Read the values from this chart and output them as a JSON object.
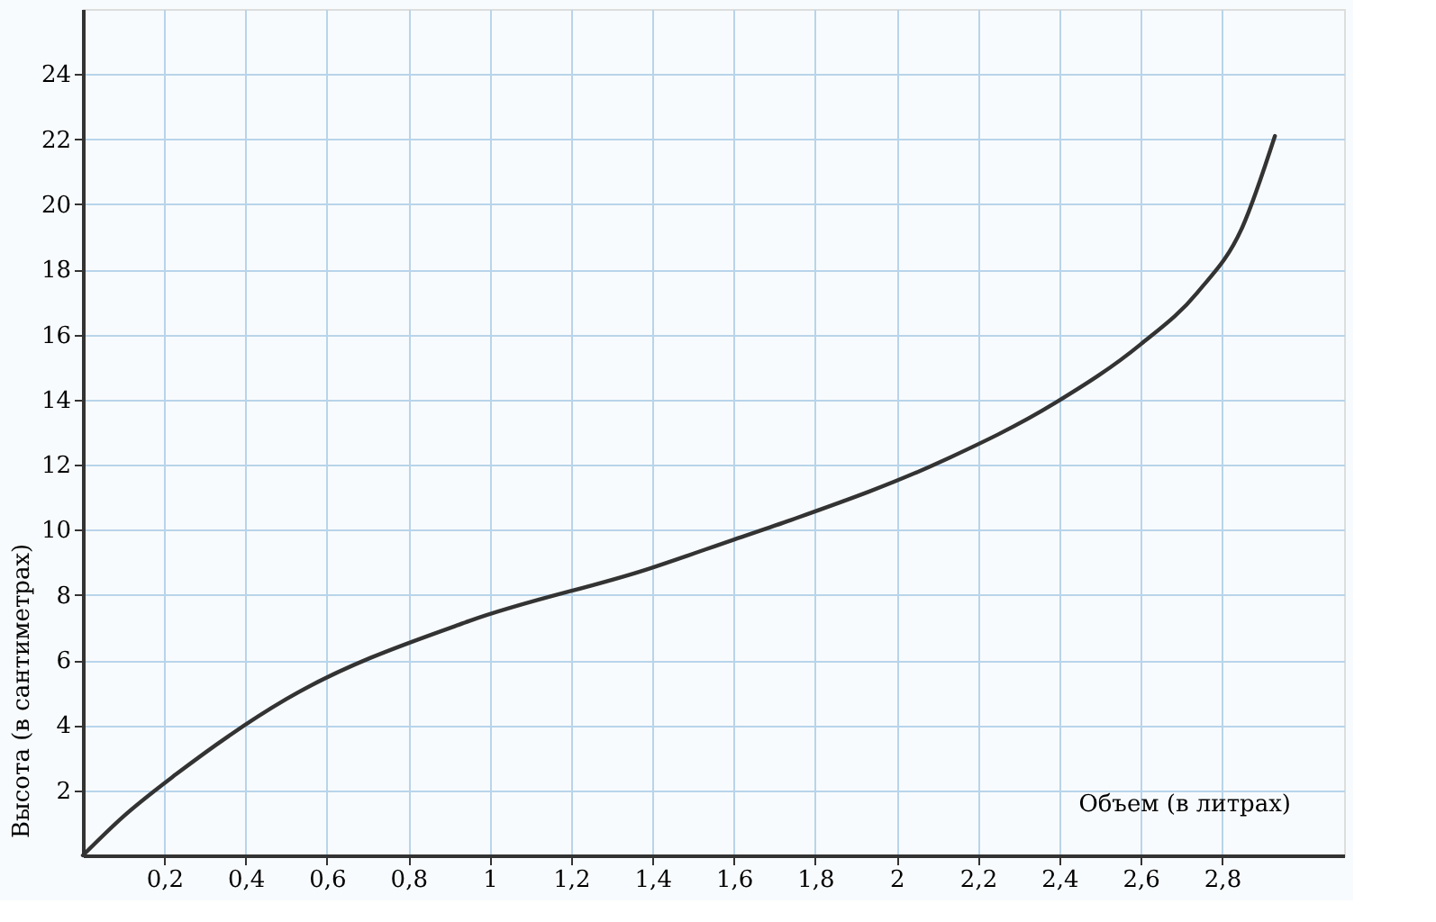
{
  "chart_data": {
    "type": "line",
    "xlabel": "Объем (в литрах)",
    "ylabel": "Высота (в сантиметрах)",
    "x": [
      0,
      0.1,
      0.23,
      0.5,
      0.95,
      1.39,
      1.6,
      1.74,
      2.11,
      2.39,
      2.6,
      2.74,
      2.85,
      2.93
    ],
    "series": [
      {
        "color": "#333333",
        "values": [
          0,
          1.2,
          2.5,
          4.8,
          7.2,
          8.8,
          9.7,
          10.3,
          12.1,
          13.9,
          15.7,
          17.3,
          19.3,
          22.1
        ]
      }
    ],
    "xlim": [
      0,
      3.1
    ],
    "ylim": [
      0,
      26
    ],
    "xticks": [
      {
        "value": 0.2,
        "label": "0,2"
      },
      {
        "value": 0.4,
        "label": "0,4"
      },
      {
        "value": 0.6,
        "label": "0,6"
      },
      {
        "value": 0.8,
        "label": "0,8"
      },
      1,
      {
        "value": 1.2,
        "label": "1,2"
      },
      {
        "value": 1.4,
        "label": "1,4"
      },
      {
        "value": 1.6,
        "label": "1,6"
      },
      {
        "value": 1.8,
        "label": "1,8"
      },
      2,
      {
        "value": 2.2,
        "label": "2,2"
      },
      {
        "value": 2.4,
        "label": "2,4"
      },
      {
        "value": 2.6,
        "label": "2,6"
      },
      {
        "value": 2.8,
        "label": "2,8"
      }
    ],
    "yticks": [
      2,
      4,
      6,
      8,
      10,
      12,
      14,
      16,
      18,
      20,
      22,
      24
    ],
    "grid": true,
    "marker": "none",
    "line_style": "solid"
  }
}
